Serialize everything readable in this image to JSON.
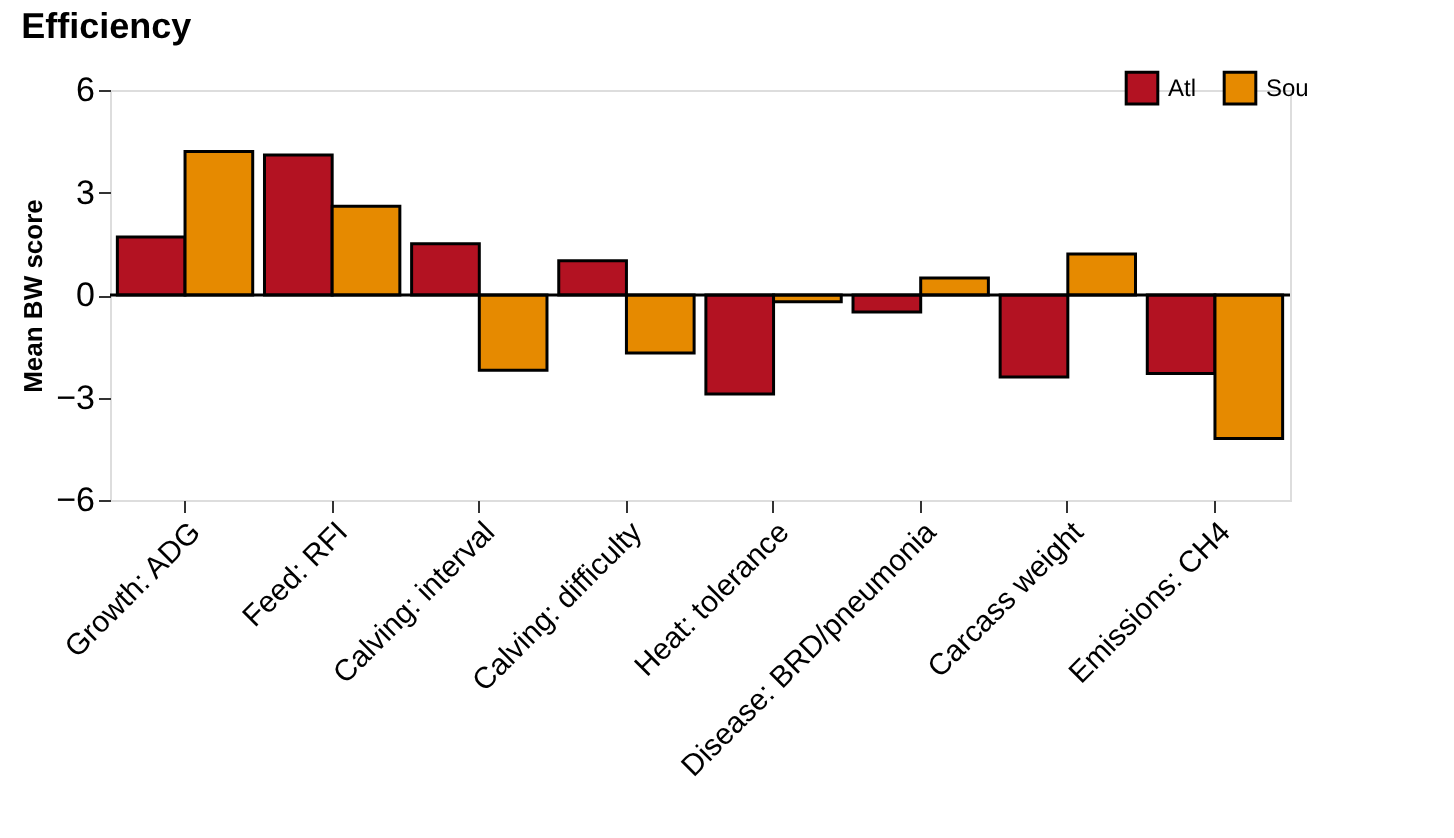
{
  "chart_data": {
    "type": "bar",
    "title": "Efficiency",
    "ylabel": "Mean BW score",
    "categories": [
      "Growth: ADG",
      "Feed: RFI",
      "Calving: interval",
      "Calving: difficulty",
      "Heat: tolerance",
      "Disease: BRD/pneumonia",
      "Carcass weight",
      "Emissions: CH4"
    ],
    "series": [
      {
        "name": "Atl",
        "color": "#b31222",
        "values": [
          1.7,
          4.1,
          1.5,
          1.0,
          -2.9,
          -0.5,
          -2.4,
          -2.3
        ]
      },
      {
        "name": "Sou",
        "color": "#e68a00",
        "values": [
          4.2,
          2.6,
          -2.2,
          -1.7,
          -0.2,
          0.5,
          1.2,
          -4.2
        ]
      }
    ],
    "ylim": [
      -6,
      6
    ],
    "yticks": [
      -6,
      -3,
      0,
      3,
      6
    ],
    "ref_lines": [
      {
        "axis": "y",
        "value": 0,
        "label": null,
        "color": "#000000"
      }
    ],
    "grid": false,
    "legend": "top right"
  }
}
